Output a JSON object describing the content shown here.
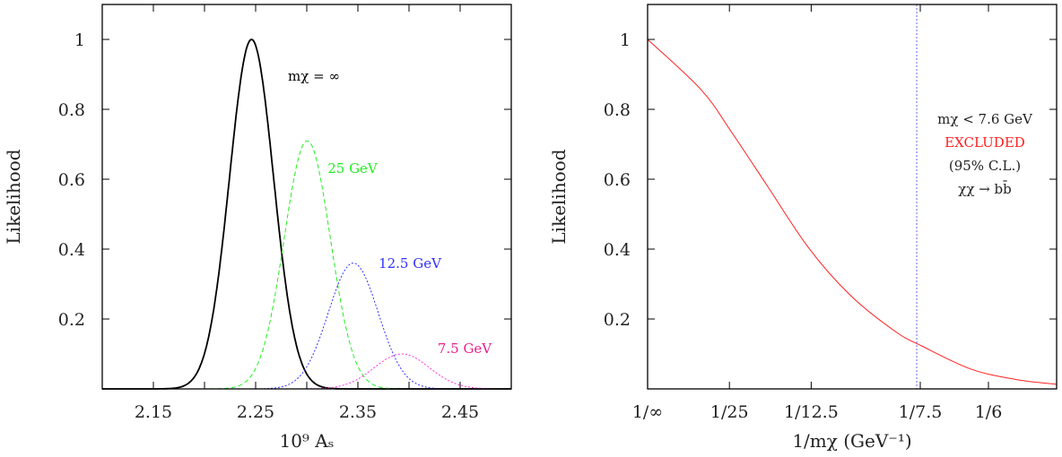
{
  "chart_data": [
    {
      "type": "line",
      "xlabel": "10⁹ Aₛ",
      "ylabel": "Likelihood",
      "xlim": [
        2.1,
        2.5
      ],
      "ylim": [
        0,
        1.1
      ],
      "xticks": [
        2.15,
        2.25,
        2.35,
        2.45
      ],
      "xtick_labels": [
        "2.15",
        "2.25",
        "2.35",
        "2.45"
      ],
      "xminor_ticks": [
        2.2,
        2.3,
        2.4
      ],
      "yticks": [
        0.2,
        0.4,
        0.6,
        0.8,
        1
      ],
      "ytick_labels": [
        "0.2",
        "0.4",
        "0.6",
        "0.8",
        "1"
      ],
      "grid": false,
      "series": [
        {
          "name": "mχ = ∞",
          "shape": "gaussian",
          "peak_x": 2.246,
          "peak_y": 1.0,
          "sigma": 0.0215,
          "color": "#000000",
          "style": "solid"
        },
        {
          "name": "25 GeV",
          "shape": "gaussian",
          "peak_x": 2.3005,
          "peak_y": 0.71,
          "sigma": 0.0226,
          "color": "#22ee22",
          "style": "dashed"
        },
        {
          "name": "12.5 GeV",
          "shape": "gaussian",
          "peak_x": 2.3455,
          "peak_y": 0.36,
          "sigma": 0.0244,
          "color": "#3030ff",
          "style": "dotted"
        },
        {
          "name": "7.5 GeV",
          "shape": "gaussian",
          "peak_x": 2.393,
          "peak_y": 0.1,
          "sigma": 0.027,
          "color": "#ff33dd",
          "style": "dotted",
          "label_color": "#e8208c"
        }
      ]
    },
    {
      "type": "line",
      "xlabel": "1/mχ (GeV⁻¹)",
      "ylabel": "Likelihood",
      "xlim": [
        0,
        0.2
      ],
      "ylim": [
        0,
        1.1
      ],
      "xticks": [
        0,
        0.04,
        0.08,
        0.13333,
        0.16667
      ],
      "xtick_labels": [
        "1/∞",
        "1/25",
        "1/12.5",
        "1/7.5",
        "1/6"
      ],
      "yticks": [
        0.2,
        0.4,
        0.6,
        0.8,
        1
      ],
      "ytick_labels": [
        "0.2",
        "0.4",
        "0.6",
        "0.8",
        "1"
      ],
      "grid": false,
      "series": [
        {
          "color": "#ff2020",
          "style": "solid",
          "x": [
            0,
            0.0262,
            0.0408,
            0.0583,
            0.0788,
            0.0993,
            0.1212,
            0.134,
            0.158,
            0.18,
            0.2
          ],
          "y": [
            1.0,
            0.856,
            0.737,
            0.583,
            0.403,
            0.267,
            0.164,
            0.123,
            0.057,
            0.027,
            0.013
          ]
        }
      ],
      "vline": {
        "x": 0.1316,
        "color": "#6666ee",
        "style": "dotted"
      },
      "annotation": {
        "line1": "mχ < 7.6 GeV",
        "line2": "EXCLUDED",
        "line2_color": "#ff2020",
        "line3": "(95% C.L.)",
        "line4": "χχ → bb̄"
      }
    }
  ]
}
